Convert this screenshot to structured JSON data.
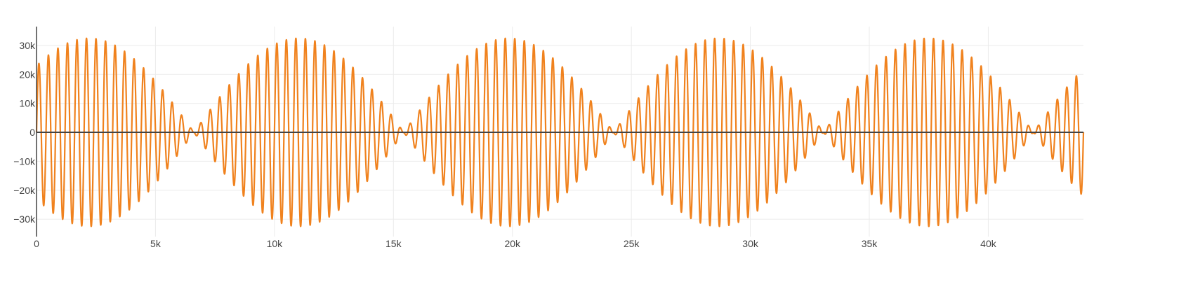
{
  "chart_data": {
    "type": "line",
    "title": "",
    "xlabel": "",
    "ylabel": "",
    "xlim": [
      0,
      44000
    ],
    "ylim": [
      -36000,
      36500
    ],
    "x_ticks": [
      {
        "value": 0,
        "label": "0"
      },
      {
        "value": 5000,
        "label": "5k"
      },
      {
        "value": 10000,
        "label": "10k"
      },
      {
        "value": 15000,
        "label": "15k"
      },
      {
        "value": 20000,
        "label": "20k"
      },
      {
        "value": 25000,
        "label": "25k"
      },
      {
        "value": 30000,
        "label": "30k"
      },
      {
        "value": 35000,
        "label": "35k"
      },
      {
        "value": 40000,
        "label": "40k"
      }
    ],
    "y_ticks": [
      {
        "value": 30000,
        "label": "30k"
      },
      {
        "value": 20000,
        "label": "20k"
      },
      {
        "value": 10000,
        "label": "10k"
      },
      {
        "value": 0,
        "label": "0"
      },
      {
        "value": -10000,
        "label": "−10k"
      },
      {
        "value": -20000,
        "label": "−20k"
      },
      {
        "value": -30000,
        "label": "−30k"
      }
    ],
    "grid": true,
    "legend": "none",
    "colors": {
      "line": "#f0821e",
      "zero_line": "#444444",
      "grid": "#ebebeb",
      "axis": "#444444"
    },
    "series": [
      {
        "signal_model": "amplitude-modulated sine wave (beating)",
        "peak_amplitude": 32500,
        "carrier_period_x": 400,
        "envelope_period_x": 8820,
        "envelope_peak_x": [
          2205,
          11025,
          19845,
          28665,
          37485
        ],
        "x_start": 0,
        "x_end": 44000
      }
    ]
  }
}
